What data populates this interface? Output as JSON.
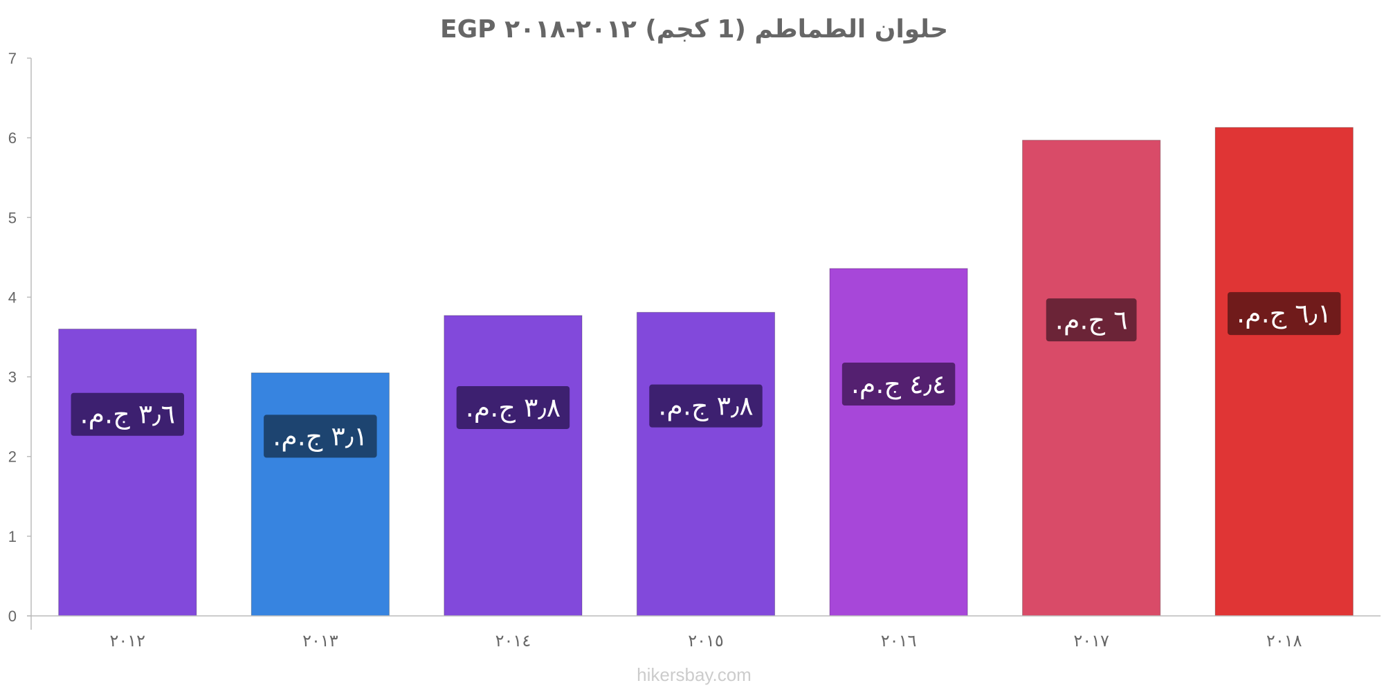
{
  "chart_data": {
    "type": "bar",
    "title": "حلوان الطماطم (1 كجم) ٢٠١٢-٢٠١٨ EGP",
    "xlabel": "",
    "ylabel": "",
    "ylim": [
      0,
      7
    ],
    "yticks": [
      0,
      1,
      2,
      3,
      4,
      5,
      6,
      7
    ],
    "grid": false,
    "categories": [
      "٢٠١٢",
      "٢٠١٣",
      "٢٠١٤",
      "٢٠١٥",
      "٢٠١٦",
      "٢٠١٧",
      "٢٠١٨"
    ],
    "values": [
      3.6,
      3.05,
      3.77,
      3.81,
      4.36,
      5.97,
      6.13
    ],
    "data_labels": [
      "٣٫٦ ج.م.",
      "٣٫١ ج.م.",
      "٣٫٨ ج.م.",
      "٣٫٨ ج.م.",
      "٤٫٤ ج.م.",
      "٦ ج.م.",
      "٦٫١ ج.م."
    ],
    "bar_colors": [
      "#8249db",
      "#3784e0",
      "#8249db",
      "#8249db",
      "#a747d9",
      "#d94b68",
      "#e03535"
    ],
    "label_colors": [
      "#3d2070",
      "#1d4470",
      "#3d2070",
      "#3d2070",
      "#542070",
      "#6b2437",
      "#701b1b"
    ]
  },
  "footer": "hikersbay.com"
}
